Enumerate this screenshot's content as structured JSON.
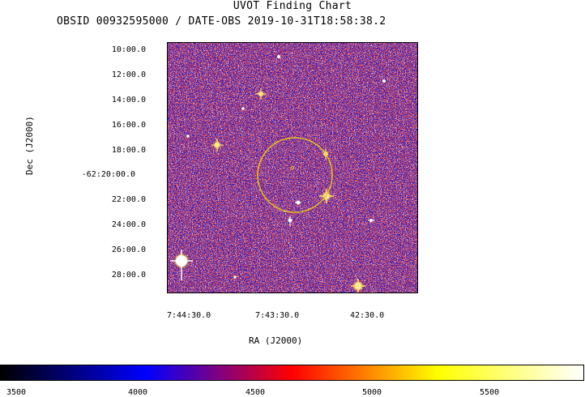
{
  "header": {
    "title": "UVOT Finding Chart",
    "subtitle": "OBSID 00932595000 / DATE-OBS 2019-10-31T18:58:38.2"
  },
  "axes": {
    "ylabel": "Dec  (J2000)",
    "xlabel": "RA (J2000)",
    "y_ticks": [
      "10:00.0",
      "12:00.0",
      "14:00.0",
      "16:00.0",
      "18:00.0",
      "-62:20:00.0",
      "22:00.0",
      "24:00.0",
      "26:00.0",
      "28:00.0"
    ],
    "x_ticks": [
      "7:44:30.0",
      "7:43:30.0",
      "42:30.0"
    ]
  },
  "colorbar": {
    "ticks": [
      "3500",
      "4000",
      "4500",
      "5000",
      "5500"
    ],
    "colors": [
      "#000000",
      "#0000ff",
      "#ff0000",
      "#ffff00",
      "#ffffff"
    ]
  },
  "region": {
    "color": "#e8c020",
    "shape": "circle"
  },
  "palette": {
    "background_blue": "#2a1fc0",
    "noise_red": "#e01818",
    "star": "#ffffff"
  }
}
